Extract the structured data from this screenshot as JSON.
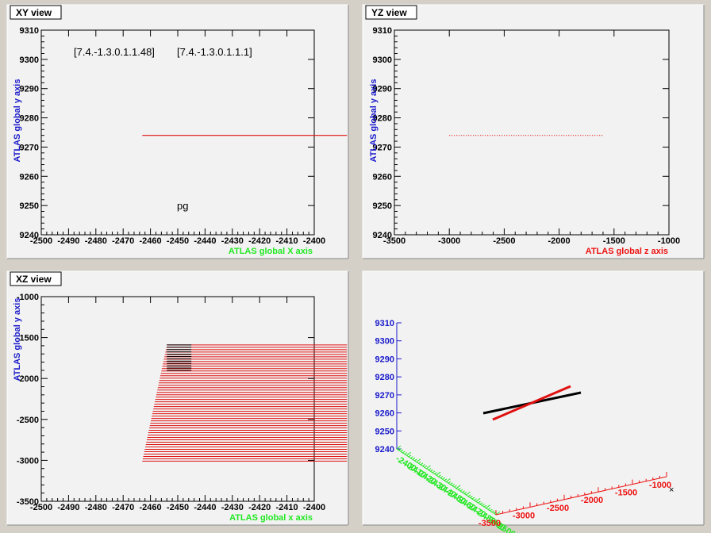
{
  "colors": {
    "pad_bg": "#f2f2f2",
    "frame": "#000000",
    "green_label": "#22e822",
    "red_label": "#ee1111",
    "blue_label": "#1a1acc",
    "track_red": "#e01010",
    "track_black": "#000000"
  },
  "chart_data": [
    {
      "type": "line",
      "title": "XY view",
      "xlabel": "ATLAS global X axis",
      "ylabel": "ATLAS global y axis",
      "xlim": [
        -2500,
        -2400
      ],
      "ylim": [
        9240,
        9310
      ],
      "x_ticks": [
        -2500,
        -2490,
        -2480,
        -2470,
        -2460,
        -2450,
        -2440,
        -2430,
        -2420,
        -2410,
        -2400
      ],
      "y_ticks": [
        9240,
        9250,
        9260,
        9270,
        9280,
        9290,
        9300,
        9310
      ],
      "annotations": [
        "[7.4.-1.3.0.1.1.48]",
        "[7.4.-1.3.0.1.1.1]",
        "pg"
      ],
      "series": [
        {
          "color": "#e01010",
          "x": [
            -2463,
            -2388
          ],
          "y": [
            9274,
            9274
          ]
        }
      ]
    },
    {
      "type": "line",
      "title": "YZ view",
      "xlabel": "ATLAS global z axis",
      "ylabel": "ATLAS global y axis",
      "xlim": [
        -3500,
        -1000
      ],
      "ylim": [
        9240,
        9310
      ],
      "x_ticks": [
        -3500,
        -3000,
        -2500,
        -2000,
        -1500,
        -1000
      ],
      "y_ticks": [
        9240,
        9250,
        9260,
        9270,
        9280,
        9290,
        9300,
        9310
      ],
      "series": [
        {
          "color": "#e01010",
          "style": "dotted",
          "x": [
            -3000,
            -1600
          ],
          "y": [
            9274,
            9274
          ]
        }
      ]
    },
    {
      "type": "line",
      "title": "XZ view",
      "xlabel": "ATLAS global x axis",
      "ylabel": "ATLAS global y axis",
      "xlim": [
        -2500,
        -2400
      ],
      "ylim": [
        -3500,
        -1000
      ],
      "x_ticks": [
        -2500,
        -2490,
        -2480,
        -2470,
        -2460,
        -2450,
        -2440,
        -2430,
        -2420,
        -2410,
        -2400
      ],
      "y_ticks": [
        -3500,
        -3000,
        -2500,
        -2000,
        -1500,
        -1000
      ],
      "series": [
        {
          "name_hint": "hatched hits",
          "color": "#e01010",
          "x_start_at_y_top": -2454,
          "x_start_at_y_bottom": -2463,
          "x_end": -2388,
          "y_range": [
            -3010,
            -1590
          ],
          "count": 50
        },
        {
          "color": "#000000",
          "x": [
            -2454,
            -2445
          ],
          "y_range": [
            -1900,
            -1590
          ],
          "count": 12
        }
      ]
    },
    {
      "type": "scatter",
      "title": "",
      "xlabel": "",
      "ylabel": "",
      "y_ticks": [
        9240,
        9250,
        9260,
        9270,
        9280,
        9290,
        9300,
        9310
      ],
      "x_ticks": [
        -2400,
        -2410,
        -2420,
        -2430,
        -2440,
        -2450,
        -2460,
        -2470,
        -2480,
        -2490,
        -2500
      ],
      "z_ticks": [
        -3500,
        -3000,
        -2500,
        -2000,
        -1500,
        -1000
      ],
      "series": [
        {
          "color": "#000000",
          "label": "black track"
        },
        {
          "color": "#e01010",
          "label": "red track"
        }
      ]
    }
  ]
}
